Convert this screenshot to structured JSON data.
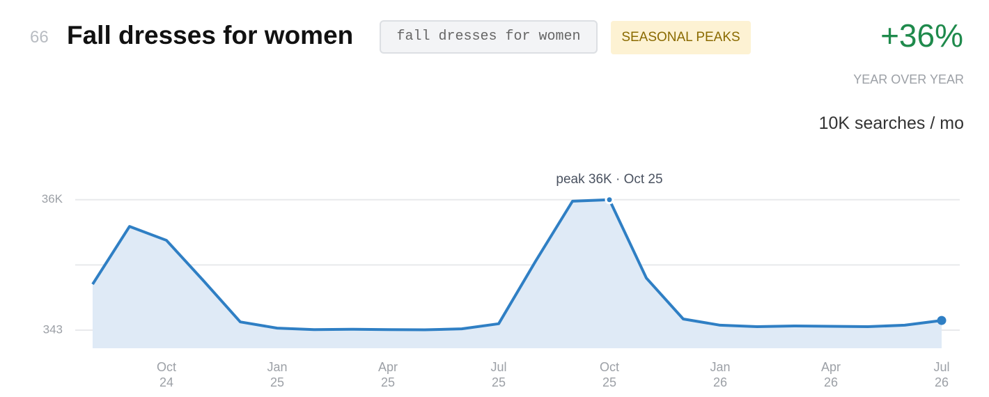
{
  "header": {
    "index": "66",
    "title": "Fall dresses for women",
    "keyword": "fall dresses for women",
    "tag": "SEASONAL PEAKS",
    "change": "+36%",
    "change_label": "YEAR OVER YEAR",
    "volume": "10K searches / mo"
  },
  "chart_data": {
    "type": "line",
    "categories": [
      null,
      null,
      "Oct\n24",
      null,
      null,
      "Jan\n25",
      null,
      null,
      "Apr\n25",
      null,
      null,
      "Jul\n25",
      null,
      null,
      "Oct\n25",
      null,
      null,
      "Jan\n26",
      null,
      null,
      "Apr\n26",
      null,
      null,
      "Jul\n26"
    ],
    "values": [
      12900,
      28700,
      24900,
      13900,
      2600,
      900,
      500,
      600,
      500,
      450,
      700,
      2100,
      19200,
      35600,
      36000,
      14600,
      3400,
      1700,
      1300,
      1500,
      1400,
      1300,
      1700,
      3000
    ],
    "color": "#2f7fc4",
    "area_color": "#dfeaf6",
    "ylim": [
      -4600,
      43000
    ],
    "yticks": [
      343,
      {
        "value": 36000,
        "label": "36K"
      }
    ],
    "grid_lines": [
      343,
      18172,
      36000
    ],
    "annotation": "peak 36K · Oct 25"
  }
}
